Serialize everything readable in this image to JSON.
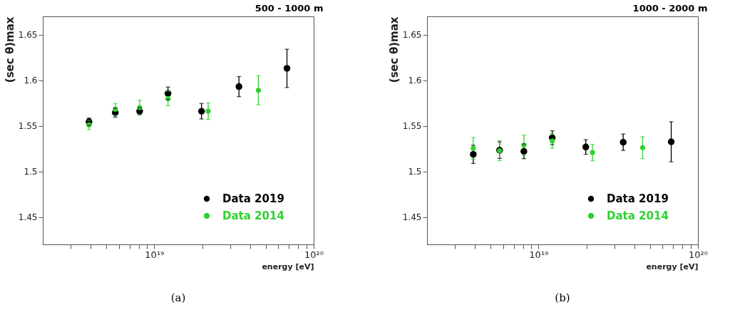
{
  "chart_data": [
    {
      "type": "scatter",
      "title": "500 - 1000 m",
      "xlabel": "energy [eV]",
      "ylabel": "(sec θ)max",
      "log": "x",
      "marker": "circle",
      "grid": false,
      "legend": "bottom right",
      "xlim": [
        2e+18,
        1e+20
      ],
      "ylim": [
        1.42,
        1.67
      ],
      "xticks": [
        {
          "value": 3e+18,
          "label": null
        },
        {
          "value": 4e+18,
          "label": null
        },
        {
          "value": 5e+18,
          "label": null
        },
        {
          "value": 6e+18,
          "label": null
        },
        {
          "value": 7e+18,
          "label": null
        },
        {
          "value": 8e+18,
          "label": null
        },
        {
          "value": 9e+18,
          "label": null
        },
        {
          "value": 1e+19,
          "label": "10¹⁹"
        },
        {
          "value": 2e+19,
          "label": null
        },
        {
          "value": 3e+19,
          "label": null
        },
        {
          "value": 4e+19,
          "label": null
        },
        {
          "value": 5e+19,
          "label": null
        },
        {
          "value": 6e+19,
          "label": null
        },
        {
          "value": 7e+19,
          "label": null
        },
        {
          "value": 8e+19,
          "label": null
        },
        {
          "value": 9e+19,
          "label": null
        },
        {
          "value": 1e+20,
          "label": "10²⁰"
        }
      ],
      "yticks": [
        1.45,
        1.5,
        1.55,
        1.6,
        1.65
      ],
      "annotations": [
        "(a)"
      ],
      "series": [
        {
          "name": "Data 2019",
          "color": "#000000",
          "x": [
            3.9e+18,
            5.7e+18,
            8.1e+18,
            1.22e+19,
            1.98e+19,
            3.4e+19,
            6.8e+19
          ],
          "values": [
            1.5545,
            1.5645,
            1.566,
            1.5855,
            1.566,
            1.593,
            1.613
          ],
          "errors": [
            0.004,
            0.005,
            0.004,
            0.007,
            0.0085,
            0.011,
            0.021
          ]
        },
        {
          "name": "Data 2014",
          "color": "#2fd12f",
          "x": [
            3.9e+18,
            5.7e+18,
            8.1e+18,
            1.22e+19,
            2.18e+19,
            4.5e+19
          ],
          "values": [
            1.551,
            1.568,
            1.57,
            1.58,
            1.566,
            1.589
          ],
          "errors": [
            0.005,
            0.0065,
            0.008,
            0.008,
            0.009,
            0.016
          ]
        }
      ]
    },
    {
      "type": "scatter",
      "title": "1000 - 2000 m",
      "xlabel": "energy [eV]",
      "ylabel": "(sec θ)max",
      "log": "x",
      "marker": "circle",
      "grid": false,
      "legend": "bottom right",
      "xlim": [
        2e+18,
        1e+20
      ],
      "ylim": [
        1.42,
        1.67
      ],
      "xticks": [
        {
          "value": 3e+18,
          "label": null
        },
        {
          "value": 4e+18,
          "label": null
        },
        {
          "value": 5e+18,
          "label": null
        },
        {
          "value": 6e+18,
          "label": null
        },
        {
          "value": 7e+18,
          "label": null
        },
        {
          "value": 8e+18,
          "label": null
        },
        {
          "value": 9e+18,
          "label": null
        },
        {
          "value": 1e+19,
          "label": "10¹⁹"
        },
        {
          "value": 2e+19,
          "label": null
        },
        {
          "value": 3e+19,
          "label": null
        },
        {
          "value": 4e+19,
          "label": null
        },
        {
          "value": 5e+19,
          "label": null
        },
        {
          "value": 6e+19,
          "label": null
        },
        {
          "value": 7e+19,
          "label": null
        },
        {
          "value": 8e+19,
          "label": null
        },
        {
          "value": 9e+19,
          "label": null
        },
        {
          "value": 1e+20,
          "label": "10²⁰"
        }
      ],
      "yticks": [
        1.45,
        1.5,
        1.55,
        1.6,
        1.65
      ],
      "annotations": [
        "(b)"
      ],
      "series": [
        {
          "name": "Data 2019",
          "color": "#000000",
          "x": [
            3.9e+18,
            5.7e+18,
            8.1e+18,
            1.22e+19,
            1.98e+19,
            3.4e+19,
            6.8e+19
          ],
          "values": [
            1.5187,
            1.5233,
            1.522,
            1.537,
            1.5268,
            1.532,
            1.5325
          ],
          "errors": [
            0.01,
            0.009,
            0.008,
            0.0075,
            0.008,
            0.009,
            0.022
          ]
        },
        {
          "name": "Data 2014",
          "color": "#2fd12f",
          "x": [
            3.9e+18,
            5.7e+18,
            8.1e+18,
            1.22e+19,
            2.18e+19,
            4.5e+19
          ],
          "values": [
            1.5253,
            1.5228,
            1.5287,
            1.5334,
            1.5207,
            1.526
          ],
          "errors": [
            0.012,
            0.011,
            0.011,
            0.008,
            0.009,
            0.012
          ]
        }
      ]
    }
  ]
}
